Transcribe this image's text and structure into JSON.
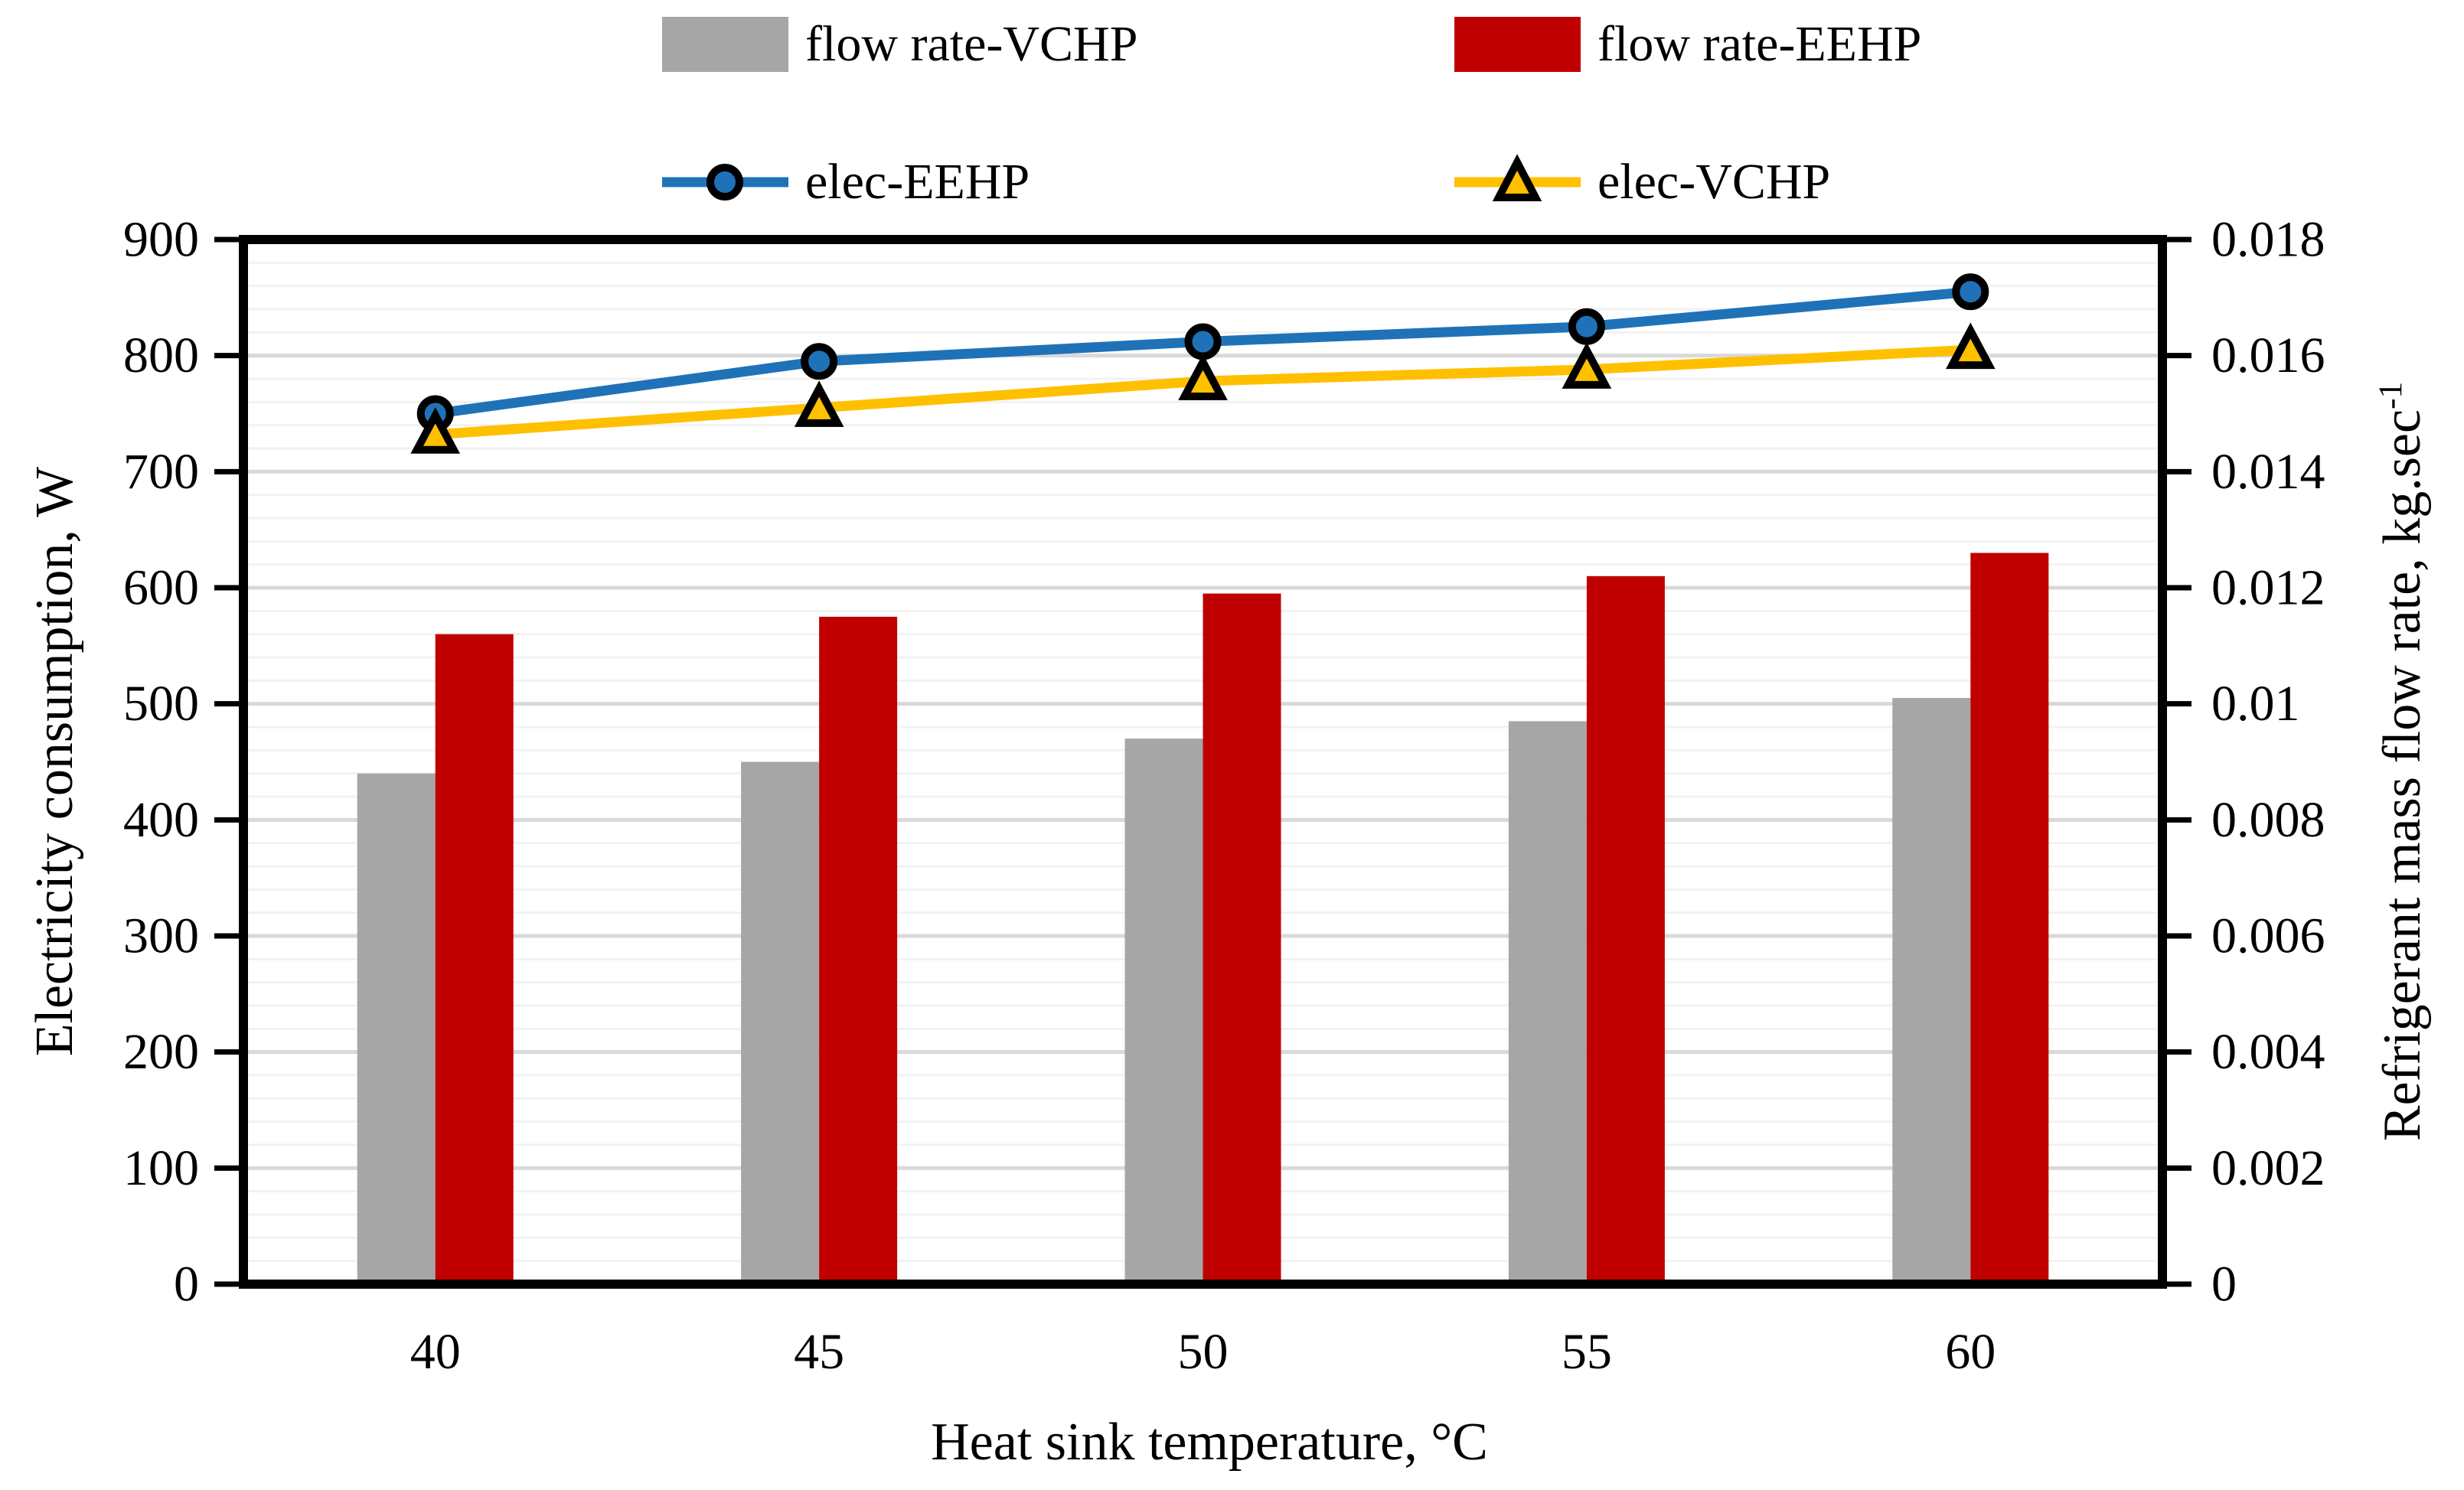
{
  "legend": {
    "position": "top",
    "items": [
      {
        "id": "flow-rate-vchp",
        "label": "flow rate-VCHP",
        "type": "bar",
        "color": "#a6a6a6"
      },
      {
        "id": "flow-rate-eehp",
        "label": "flow rate-EEHP",
        "type": "bar",
        "color": "#c00000"
      },
      {
        "id": "elec-eehp",
        "label": "elec-EEHP",
        "type": "line",
        "marker": "circle",
        "color": "#1f72b8"
      },
      {
        "id": "elec-vchp",
        "label": "elec-VCHP",
        "type": "line",
        "marker": "triangle",
        "color": "#ffc000"
      }
    ]
  },
  "chart_data": {
    "type": "combo-bar-line-dual-axis",
    "categories": [
      40,
      45,
      50,
      55,
      60
    ],
    "xlabel": "Heat sink temperature, °C",
    "left_axis": {
      "label": "Electricity consumption, W",
      "min": 0,
      "max": 900,
      "tick_step": 100,
      "ticks": [
        0,
        100,
        200,
        300,
        400,
        500,
        600,
        700,
        800,
        900
      ]
    },
    "right_axis": {
      "label": "Refrigerant mass flow rate, kg.sec",
      "label_sup": "-1",
      "min": 0,
      "max": 0.018,
      "tick_step": 0.002,
      "ticks": [
        "0",
        "0.002",
        "0.004",
        "0.006",
        "0.008",
        "0.01",
        "0.012",
        "0.014",
        "0.016",
        "0.018"
      ]
    },
    "bar_series": [
      {
        "name": "flow rate-VCHP",
        "axis": "right",
        "color": "#a6a6a6",
        "values": [
          0.0088,
          0.009,
          0.0094,
          0.0097,
          0.0101
        ]
      },
      {
        "name": "flow rate-EEHP",
        "axis": "right",
        "color": "#c00000",
        "values": [
          0.0112,
          0.0115,
          0.0119,
          0.0122,
          0.0126
        ]
      }
    ],
    "line_series": [
      {
        "name": "elec-EEHP",
        "axis": "left",
        "color": "#1f72b8",
        "marker": "circle",
        "values": [
          750,
          795,
          812,
          825,
          855
        ]
      },
      {
        "name": "elec-VCHP",
        "axis": "left",
        "color": "#ffc000",
        "marker": "triangle",
        "values": [
          732,
          755,
          778,
          788,
          805
        ]
      }
    ],
    "gridlines": {
      "minor_step_W": 20,
      "major_step_W": 100,
      "minor_color": "#f2f2f2",
      "major_color": "#d9d9d9"
    },
    "legend_position": "top",
    "grid": "on"
  }
}
